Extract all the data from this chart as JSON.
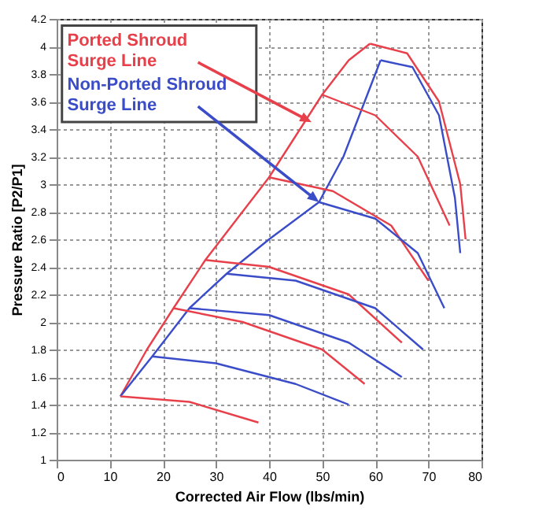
{
  "chart_data": {
    "type": "line",
    "xlabel": "Corrected Air Flow (lbs/min)",
    "ylabel": "Pressure Ratio [P2/P1]",
    "annotations": [
      {
        "text": "Ported Shroud Surge Line",
        "x": 48,
        "y": 3.45
      },
      {
        "text": "Non-Ported Shroud Surge Line",
        "x": 49.4,
        "y": 2.87
      }
    ],
    "series": [
      {
        "color": "#e8404a",
        "x": [
          12,
          17,
          22,
          28,
          34,
          40,
          45,
          50,
          55,
          59
        ],
        "values": [
          1.46,
          1.8,
          2.1,
          2.45,
          2.75,
          3.05,
          3.35,
          3.65,
          3.9,
          4.02
        ]
      },
      {
        "color": "#3a4cc8",
        "x": [
          12,
          18,
          25,
          32,
          40,
          49.4,
          54,
          58,
          61
        ],
        "values": [
          1.46,
          1.75,
          2.1,
          2.35,
          2.6,
          2.87,
          3.2,
          3.6,
          3.9
        ]
      },
      {
        "color": "#e8404a",
        "x": [
          12,
          25,
          38
        ],
        "values": [
          1.46,
          1.42,
          1.27
        ]
      },
      {
        "color": "#e8404a",
        "x": [
          22,
          35,
          50,
          58
        ],
        "values": [
          2.1,
          2.0,
          1.8,
          1.55
        ]
      },
      {
        "color": "#e8404a",
        "x": [
          28,
          40,
          55,
          65
        ],
        "values": [
          2.45,
          2.4,
          2.2,
          1.85
        ]
      },
      {
        "color": "#e8404a",
        "x": [
          40,
          52,
          63,
          70
        ],
        "values": [
          3.05,
          2.95,
          2.7,
          2.3
        ]
      },
      {
        "color": "#e8404a",
        "x": [
          50,
          60,
          68,
          74
        ],
        "values": [
          3.65,
          3.5,
          3.2,
          2.7
        ]
      },
      {
        "color": "#e8404a",
        "x": [
          59,
          66,
          72,
          76,
          77
        ],
        "values": [
          4.02,
          3.95,
          3.6,
          3.0,
          2.6
        ]
      },
      {
        "color": "#3a4cc8",
        "x": [
          18,
          30,
          45,
          55
        ],
        "values": [
          1.75,
          1.7,
          1.55,
          1.4
        ]
      },
      {
        "color": "#3a4cc8",
        "x": [
          25,
          40,
          55,
          65
        ],
        "values": [
          2.1,
          2.05,
          1.85,
          1.6
        ]
      },
      {
        "color": "#3a4cc8",
        "x": [
          32,
          45,
          60,
          69
        ],
        "values": [
          2.35,
          2.3,
          2.1,
          1.8
        ]
      },
      {
        "color": "#3a4cc8",
        "x": [
          49.4,
          60,
          68,
          73
        ],
        "values": [
          2.87,
          2.75,
          2.5,
          2.1
        ]
      },
      {
        "color": "#3a4cc8",
        "x": [
          61,
          67,
          72,
          75,
          76
        ],
        "values": [
          3.9,
          3.85,
          3.5,
          2.9,
          2.5
        ]
      }
    ],
    "xlim": [
      0,
      80
    ],
    "xticks": [
      0,
      10,
      20,
      30,
      40,
      50,
      60,
      70,
      80
    ],
    "ylim": [
      1,
      4.2
    ],
    "yticks": [
      1,
      1.2,
      1.4,
      1.6,
      1.8,
      2,
      2.2,
      2.4,
      2.6,
      2.8,
      3,
      3.2,
      3.4,
      3.6,
      3.8,
      4,
      4.2
    ],
    "grid": true
  }
}
